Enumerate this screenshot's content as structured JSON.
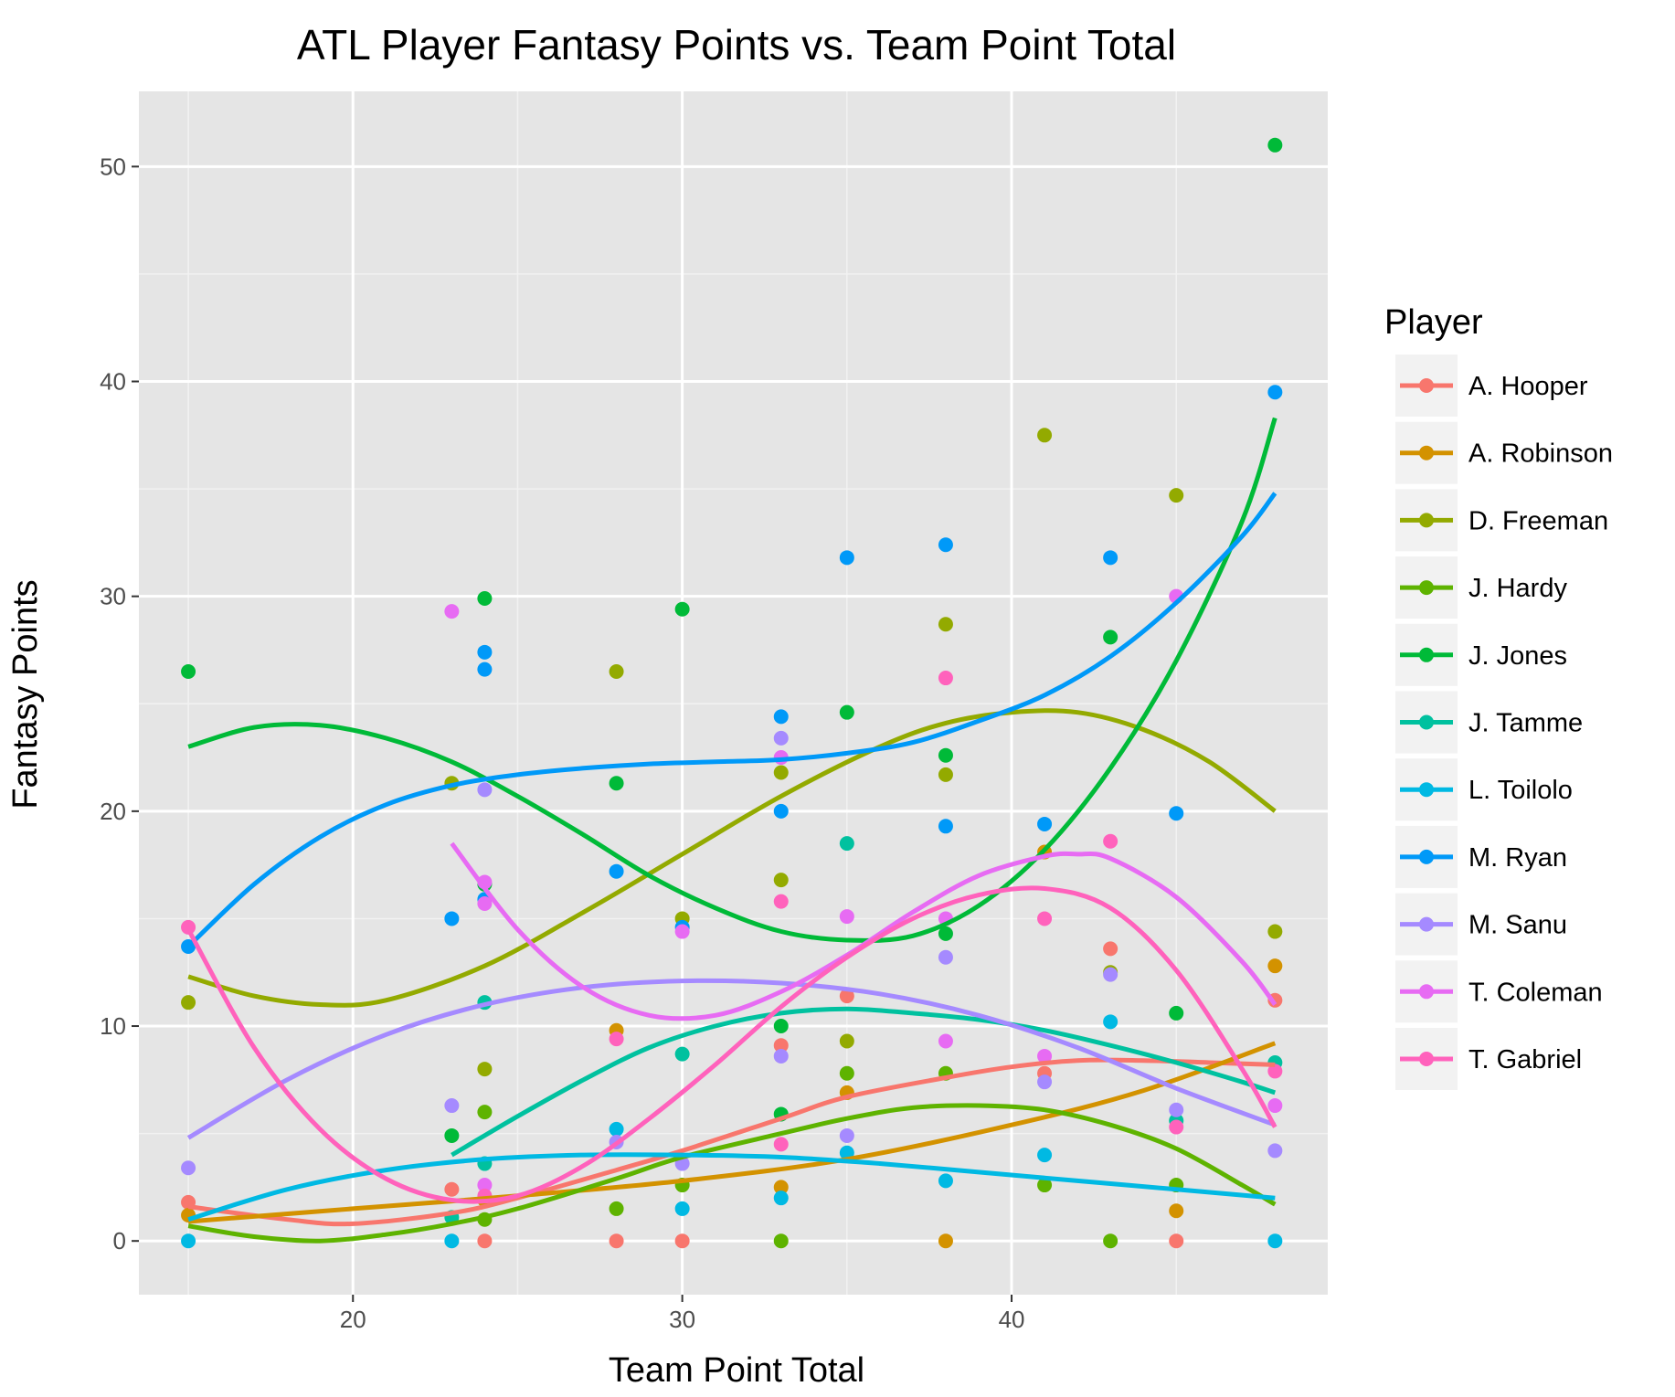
{
  "chart_data": {
    "type": "scatter",
    "title": "ATL Player Fantasy Points vs. Team Point Total",
    "xlabel": "Team Point Total",
    "ylabel": "Fantasy Points",
    "xlim": [
      13.5,
      49.6
    ],
    "ylim": [
      -2.5,
      53.5
    ],
    "x_ticks": [
      20,
      30,
      40
    ],
    "y_ticks": [
      0,
      10,
      20,
      30,
      40,
      50
    ],
    "grid": true,
    "background": "#e5e5e5",
    "legend": {
      "title": "Player",
      "position": "right"
    },
    "series": [
      {
        "name": "A. Hooper",
        "color": "#f8766d",
        "points": [
          [
            15,
            1.8
          ],
          [
            23,
            2.4
          ],
          [
            24,
            0
          ],
          [
            28,
            0
          ],
          [
            30,
            0
          ],
          [
            33,
            9.1
          ],
          [
            35,
            11.4
          ],
          [
            41,
            7.8
          ],
          [
            43,
            13.6
          ],
          [
            45,
            0
          ],
          [
            48,
            11.2
          ]
        ],
        "fit": [
          [
            15,
            1.6
          ],
          [
            18,
            1.0
          ],
          [
            20,
            0.8
          ],
          [
            23,
            1.3
          ],
          [
            25,
            2.0
          ],
          [
            28,
            3.3
          ],
          [
            30,
            4.2
          ],
          [
            33,
            5.7
          ],
          [
            35,
            6.7
          ],
          [
            38,
            7.6
          ],
          [
            40,
            8.1
          ],
          [
            42,
            8.4
          ],
          [
            44,
            8.4
          ],
          [
            46,
            8.3
          ],
          [
            48,
            8.2
          ]
        ]
      },
      {
        "name": "A. Robinson",
        "color": "#d39200",
        "points": [
          [
            15,
            1.2
          ],
          [
            24,
            1.9
          ],
          [
            28,
            9.8
          ],
          [
            33,
            2.5
          ],
          [
            35,
            6.9
          ],
          [
            38,
            0
          ],
          [
            41,
            18.1
          ],
          [
            45,
            1.4
          ],
          [
            48,
            12.8
          ]
        ],
        "fit": [
          [
            15,
            0.9
          ],
          [
            20,
            1.5
          ],
          [
            25,
            2.1
          ],
          [
            30,
            2.8
          ],
          [
            35,
            3.8
          ],
          [
            40,
            5.4
          ],
          [
            44,
            7.0
          ],
          [
            48,
            9.2
          ]
        ]
      },
      {
        "name": "D. Freeman",
        "color": "#93aa00",
        "points": [
          [
            15,
            11.1
          ],
          [
            23,
            21.3
          ],
          [
            24,
            8.0
          ],
          [
            28,
            26.5
          ],
          [
            30,
            15.0
          ],
          [
            33,
            21.8
          ],
          [
            33,
            16.8
          ],
          [
            35,
            9.3
          ],
          [
            38,
            28.7
          ],
          [
            38,
            21.7
          ],
          [
            41,
            37.5
          ],
          [
            43,
            12.5
          ],
          [
            45,
            34.7
          ],
          [
            48,
            14.4
          ]
        ],
        "fit": [
          [
            15,
            12.3
          ],
          [
            17,
            11.4
          ],
          [
            19,
            11.0
          ],
          [
            21,
            11.2
          ],
          [
            24,
            12.8
          ],
          [
            27,
            15.3
          ],
          [
            30,
            18.0
          ],
          [
            33,
            20.7
          ],
          [
            36,
            23.0
          ],
          [
            38,
            24.1
          ],
          [
            40,
            24.6
          ],
          [
            42,
            24.6
          ],
          [
            44,
            23.8
          ],
          [
            46,
            22.3
          ],
          [
            48,
            20.0
          ]
        ]
      },
      {
        "name": "J. Hardy",
        "color": "#5eb300",
        "points": [
          [
            24,
            1.0
          ],
          [
            24,
            6.0
          ],
          [
            28,
            1.5
          ],
          [
            30,
            2.6
          ],
          [
            33,
            0
          ],
          [
            35,
            7.8
          ],
          [
            38,
            7.8
          ],
          [
            41,
            2.6
          ],
          [
            43,
            0
          ],
          [
            45,
            2.6
          ]
        ],
        "fit": [
          [
            15,
            0.7
          ],
          [
            17,
            0.2
          ],
          [
            19,
            0.0
          ],
          [
            21,
            0.3
          ],
          [
            23,
            0.8
          ],
          [
            25,
            1.5
          ],
          [
            28,
            2.9
          ],
          [
            30,
            3.9
          ],
          [
            33,
            5.0
          ],
          [
            35,
            5.7
          ],
          [
            37,
            6.2
          ],
          [
            39,
            6.3
          ],
          [
            41,
            6.1
          ],
          [
            43,
            5.4
          ],
          [
            45,
            4.3
          ],
          [
            47,
            2.6
          ],
          [
            48,
            1.7
          ]
        ]
      },
      {
        "name": "J. Jones",
        "color": "#00ba38",
        "points": [
          [
            15,
            26.5
          ],
          [
            23,
            4.9
          ],
          [
            24,
            29.9
          ],
          [
            24,
            16.6
          ],
          [
            28,
            21.3
          ],
          [
            30,
            29.4
          ],
          [
            33,
            10.0
          ],
          [
            33,
            5.9
          ],
          [
            35,
            24.6
          ],
          [
            38,
            22.6
          ],
          [
            38,
            14.3
          ],
          [
            43,
            28.1
          ],
          [
            45,
            10.6
          ],
          [
            48,
            51.0
          ]
        ],
        "fit": [
          [
            15,
            23.0
          ],
          [
            17,
            23.9
          ],
          [
            19,
            24.0
          ],
          [
            21,
            23.4
          ],
          [
            23,
            22.3
          ],
          [
            25,
            20.7
          ],
          [
            27,
            18.9
          ],
          [
            29,
            17.0
          ],
          [
            31,
            15.5
          ],
          [
            33,
            14.4
          ],
          [
            35,
            14.0
          ],
          [
            37,
            14.2
          ],
          [
            39,
            15.6
          ],
          [
            41,
            18.2
          ],
          [
            43,
            22.0
          ],
          [
            45,
            27.0
          ],
          [
            47,
            33.5
          ],
          [
            48,
            38.3
          ]
        ]
      },
      {
        "name": "J. Tamme",
        "color": "#00c19f",
        "points": [
          [
            23,
            1.1
          ],
          [
            24,
            3.6
          ],
          [
            24,
            11.1
          ],
          [
            30,
            8.7
          ],
          [
            35,
            18.5
          ],
          [
            45,
            5.6
          ],
          [
            48,
            8.3
          ]
        ],
        "fit": [
          [
            23,
            4.0
          ],
          [
            25,
            5.8
          ],
          [
            27,
            7.5
          ],
          [
            29,
            9.0
          ],
          [
            31,
            10.0
          ],
          [
            33,
            10.6
          ],
          [
            35,
            10.8
          ],
          [
            37,
            10.6
          ],
          [
            39,
            10.3
          ],
          [
            41,
            9.8
          ],
          [
            43,
            9.1
          ],
          [
            45,
            8.3
          ],
          [
            47,
            7.4
          ],
          [
            48,
            6.9
          ]
        ]
      },
      {
        "name": "L. Toilolo",
        "color": "#00b9e3",
        "points": [
          [
            15,
            0
          ],
          [
            23,
            0
          ],
          [
            28,
            5.2
          ],
          [
            30,
            1.5
          ],
          [
            33,
            2.0
          ],
          [
            35,
            4.1
          ],
          [
            38,
            2.8
          ],
          [
            41,
            4.0
          ],
          [
            43,
            10.2
          ],
          [
            48,
            0
          ]
        ],
        "fit": [
          [
            15,
            1.0
          ],
          [
            18,
            2.4
          ],
          [
            21,
            3.3
          ],
          [
            24,
            3.8
          ],
          [
            27,
            4.0
          ],
          [
            30,
            4.0
          ],
          [
            33,
            3.9
          ],
          [
            36,
            3.6
          ],
          [
            39,
            3.2
          ],
          [
            42,
            2.8
          ],
          [
            45,
            2.4
          ],
          [
            48,
            2.0
          ]
        ]
      },
      {
        "name": "M. Ryan",
        "color": "#0099f8",
        "points": [
          [
            15,
            13.7
          ],
          [
            23,
            15.0
          ],
          [
            24,
            27.4
          ],
          [
            24,
            26.6
          ],
          [
            24,
            15.9
          ],
          [
            28,
            17.2
          ],
          [
            30,
            14.6
          ],
          [
            33,
            24.4
          ],
          [
            33,
            20.0
          ],
          [
            35,
            31.8
          ],
          [
            38,
            32.4
          ],
          [
            38,
            19.3
          ],
          [
            41,
            19.4
          ],
          [
            43,
            31.8
          ],
          [
            45,
            19.9
          ],
          [
            48,
            39.5
          ]
        ],
        "fit": [
          [
            15,
            13.7
          ],
          [
            17,
            16.6
          ],
          [
            19,
            18.8
          ],
          [
            21,
            20.3
          ],
          [
            23,
            21.2
          ],
          [
            25,
            21.7
          ],
          [
            27,
            22.0
          ],
          [
            29,
            22.2
          ],
          [
            31,
            22.3
          ],
          [
            33,
            22.4
          ],
          [
            35,
            22.7
          ],
          [
            37,
            23.2
          ],
          [
            39,
            24.2
          ],
          [
            41,
            25.4
          ],
          [
            43,
            27.2
          ],
          [
            45,
            29.7
          ],
          [
            47,
            32.8
          ],
          [
            48,
            34.8
          ]
        ]
      },
      {
        "name": "M. Sanu",
        "color": "#a58aff",
        "points": [
          [
            15,
            3.4
          ],
          [
            23,
            6.3
          ],
          [
            24,
            21.0
          ],
          [
            28,
            4.6
          ],
          [
            30,
            3.6
          ],
          [
            33,
            23.4
          ],
          [
            33,
            8.6
          ],
          [
            35,
            4.9
          ],
          [
            38,
            13.2
          ],
          [
            41,
            7.4
          ],
          [
            43,
            12.4
          ],
          [
            45,
            6.1
          ],
          [
            48,
            4.2
          ]
        ],
        "fit": [
          [
            15,
            4.8
          ],
          [
            18,
            7.5
          ],
          [
            21,
            9.6
          ],
          [
            24,
            11.0
          ],
          [
            27,
            11.8
          ],
          [
            30,
            12.1
          ],
          [
            33,
            12.0
          ],
          [
            36,
            11.5
          ],
          [
            39,
            10.5
          ],
          [
            42,
            9.0
          ],
          [
            45,
            7.1
          ],
          [
            48,
            5.4
          ]
        ]
      },
      {
        "name": "T. Coleman",
        "color": "#e76bf3",
        "points": [
          [
            23,
            29.3
          ],
          [
            24,
            16.7
          ],
          [
            24,
            15.7
          ],
          [
            24,
            2.6
          ],
          [
            30,
            14.4
          ],
          [
            33,
            22.5
          ],
          [
            35,
            15.1
          ],
          [
            38,
            15.0
          ],
          [
            38,
            9.3
          ],
          [
            41,
            8.6
          ],
          [
            45,
            30.0
          ],
          [
            48,
            6.3
          ]
        ],
        "fit": [
          [
            23,
            18.5
          ],
          [
            25,
            14.5
          ],
          [
            27,
            11.8
          ],
          [
            29,
            10.5
          ],
          [
            31,
            10.5
          ],
          [
            33,
            11.6
          ],
          [
            35,
            13.3
          ],
          [
            37,
            15.3
          ],
          [
            39,
            17.0
          ],
          [
            41,
            17.9
          ],
          [
            42,
            18.0
          ],
          [
            43,
            17.8
          ],
          [
            45,
            16.0
          ],
          [
            47,
            13.0
          ],
          [
            48,
            11.0
          ]
        ]
      },
      {
        "name": "T. Gabriel",
        "color": "#ff62bc",
        "points": [
          [
            15,
            14.6
          ],
          [
            24,
            2.1
          ],
          [
            28,
            9.4
          ],
          [
            33,
            15.8
          ],
          [
            33,
            4.5
          ],
          [
            38,
            26.2
          ],
          [
            41,
            15.0
          ],
          [
            43,
            18.6
          ],
          [
            45,
            5.3
          ],
          [
            48,
            7.9
          ]
        ],
        "fit": [
          [
            15,
            14.5
          ],
          [
            17,
            9.0
          ],
          [
            19,
            5.2
          ],
          [
            21,
            2.9
          ],
          [
            23,
            1.9
          ],
          [
            25,
            2.1
          ],
          [
            27,
            3.5
          ],
          [
            29,
            5.7
          ],
          [
            31,
            8.2
          ],
          [
            33,
            10.9
          ],
          [
            35,
            13.2
          ],
          [
            37,
            15.0
          ],
          [
            39,
            16.1
          ],
          [
            41,
            16.4
          ],
          [
            43,
            15.5
          ],
          [
            45,
            12.6
          ],
          [
            47,
            8.0
          ],
          [
            48,
            5.3
          ]
        ]
      }
    ]
  }
}
